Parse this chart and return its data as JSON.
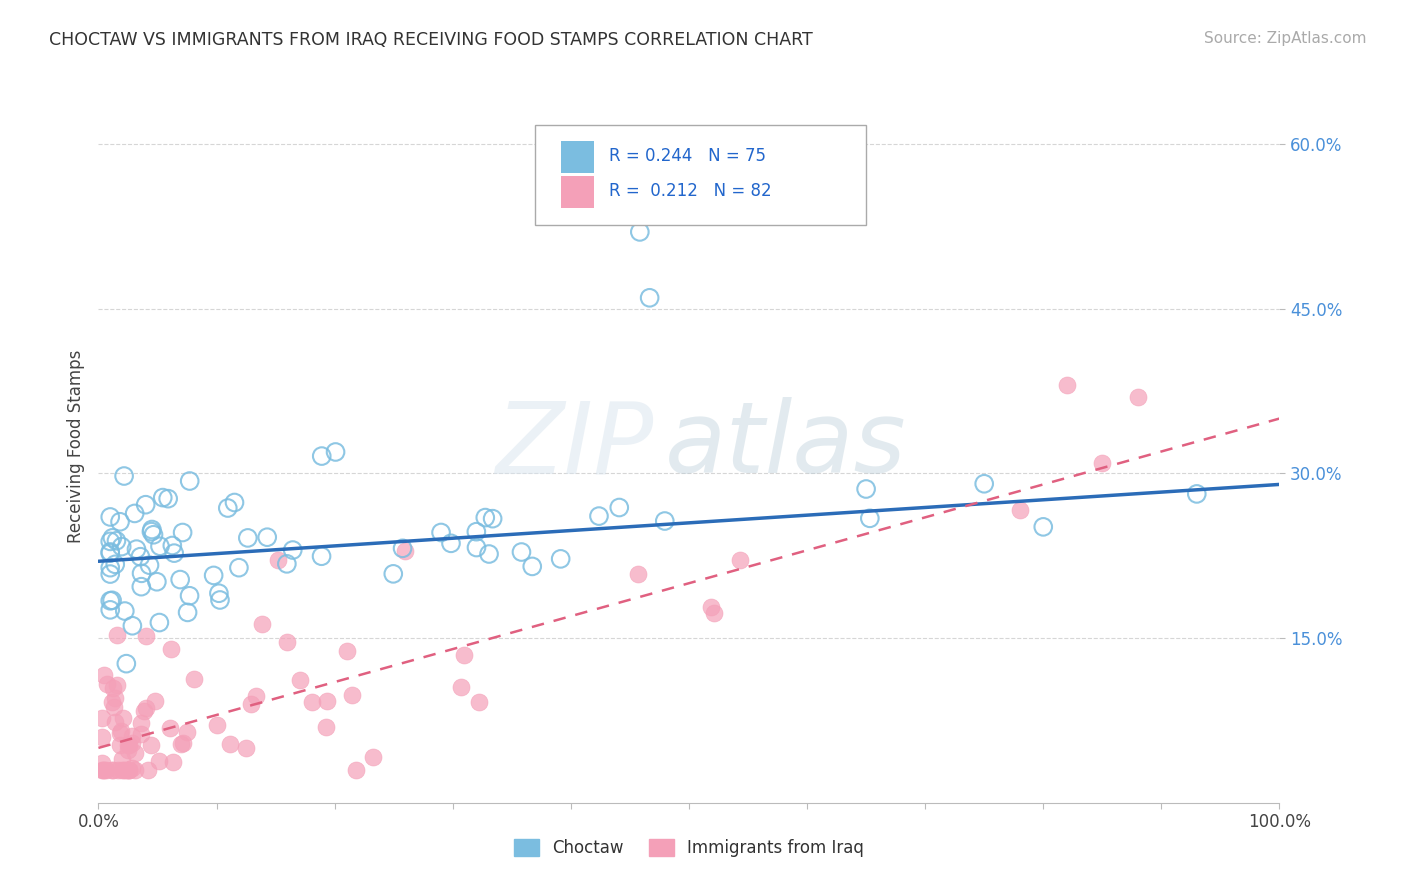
{
  "title": "CHOCTAW VS IMMIGRANTS FROM IRAQ RECEIVING FOOD STAMPS CORRELATION CHART",
  "source": "Source: ZipAtlas.com",
  "ylabel": "Receiving Food Stamps",
  "xlim": [
    0.0,
    1.0
  ],
  "ylim": [
    0.0,
    0.65
  ],
  "x_ticks": [
    0.0,
    0.1,
    0.2,
    0.3,
    0.4,
    0.5,
    0.6,
    0.7,
    0.8,
    0.9,
    1.0
  ],
  "x_tick_labels": [
    "0.0%",
    "",
    "",
    "",
    "",
    "",
    "",
    "",
    "",
    "",
    "100.0%"
  ],
  "y_ticks": [
    0.15,
    0.3,
    0.45,
    0.6
  ],
  "y_tick_labels": [
    "15.0%",
    "30.0%",
    "45.0%",
    "60.0%"
  ],
  "choctaw_color": "#7bbde0",
  "iraq_color": "#f4a0b8",
  "choctaw_line_color": "#2b6cb8",
  "iraq_line_color": "#e06080",
  "background_color": "#ffffff",
  "grid_color": "#cccccc",
  "choctaw_line_start": 0.22,
  "choctaw_line_end": 0.29,
  "iraq_line_start": 0.05,
  "iraq_line_end": 0.35
}
